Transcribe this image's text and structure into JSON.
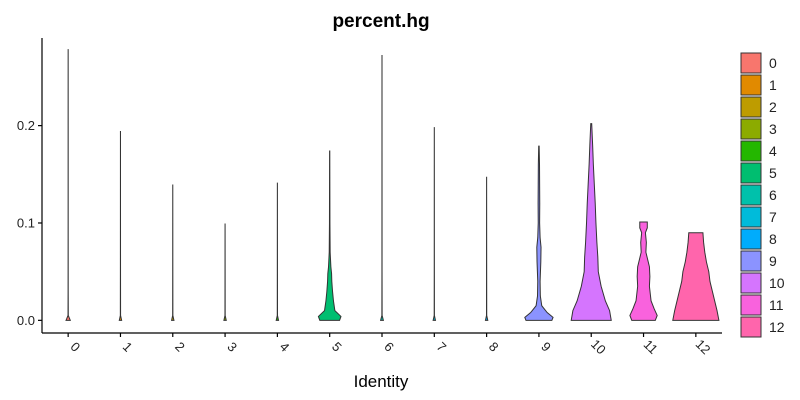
{
  "chart_data": {
    "type": "violin",
    "title": "percent.hg",
    "xlabel": "Identity",
    "ylabel": "",
    "ylim": [
      -0.013,
      0.29
    ],
    "yticks": [
      0.0,
      0.1,
      0.2
    ],
    "ytick_labels": [
      "0.0",
      "0.1",
      "0.2"
    ],
    "grid": false,
    "legend_position": "right",
    "categories": [
      "0",
      "1",
      "2",
      "3",
      "4",
      "5",
      "6",
      "7",
      "8",
      "9",
      "10",
      "11",
      "12"
    ],
    "colors": [
      "#F8766D",
      "#E18A00",
      "#BE9C00",
      "#8CAB00",
      "#24B700",
      "#00BE70",
      "#00C1AB",
      "#00BBDA",
      "#00ACFC",
      "#8B93FF",
      "#D575FE",
      "#F962DD",
      "#FF65AC"
    ],
    "max_values": [
      0.278,
      0.194,
      0.139,
      0.099,
      0.141,
      0.174,
      0.272,
      0.198,
      0.147,
      0.179,
      0.202,
      0.101,
      0.09
    ],
    "density_profiles": [
      [
        [
          0,
          0.09
        ],
        [
          0.005,
          0.006
        ],
        [
          0.03,
          0.003
        ],
        [
          0.1,
          0.002
        ],
        [
          0.2,
          0.002
        ],
        [
          0.278,
          0.001
        ]
      ],
      [
        [
          0,
          0.05
        ],
        [
          0.005,
          0.005
        ],
        [
          0.05,
          0.003
        ],
        [
          0.1,
          0.002
        ],
        [
          0.194,
          0.001
        ]
      ],
      [
        [
          0,
          0.05
        ],
        [
          0.005,
          0.005
        ],
        [
          0.05,
          0.003
        ],
        [
          0.139,
          0.001
        ]
      ],
      [
        [
          0,
          0.05
        ],
        [
          0.005,
          0.005
        ],
        [
          0.05,
          0.003
        ],
        [
          0.099,
          0.001
        ]
      ],
      [
        [
          0,
          0.05
        ],
        [
          0.005,
          0.005
        ],
        [
          0.05,
          0.003
        ],
        [
          0.141,
          0.001
        ]
      ],
      [
        [
          0,
          0.42
        ],
        [
          0.004,
          0.48
        ],
        [
          0.01,
          0.22
        ],
        [
          0.02,
          0.16
        ],
        [
          0.03,
          0.12
        ],
        [
          0.04,
          0.09
        ],
        [
          0.048,
          0.08
        ],
        [
          0.055,
          0.05
        ],
        [
          0.07,
          0.02
        ],
        [
          0.1,
          0.01
        ],
        [
          0.15,
          0.006
        ],
        [
          0.174,
          0.004
        ]
      ],
      [
        [
          0,
          0.06
        ],
        [
          0.005,
          0.006
        ],
        [
          0.05,
          0.003
        ],
        [
          0.15,
          0.002
        ],
        [
          0.272,
          0.001
        ]
      ],
      [
        [
          0,
          0.05
        ],
        [
          0.005,
          0.005
        ],
        [
          0.05,
          0.003
        ],
        [
          0.198,
          0.001
        ]
      ],
      [
        [
          0,
          0.05
        ],
        [
          0.005,
          0.005
        ],
        [
          0.05,
          0.003
        ],
        [
          0.147,
          0.001
        ]
      ],
      [
        [
          0,
          0.55
        ],
        [
          0.003,
          0.6
        ],
        [
          0.008,
          0.35
        ],
        [
          0.015,
          0.12
        ],
        [
          0.025,
          0.06
        ],
        [
          0.04,
          0.05
        ],
        [
          0.06,
          0.08
        ],
        [
          0.075,
          0.09
        ],
        [
          0.085,
          0.05
        ],
        [
          0.1,
          0.03
        ],
        [
          0.12,
          0.035
        ],
        [
          0.14,
          0.03
        ],
        [
          0.16,
          0.025
        ],
        [
          0.179,
          0.01
        ]
      ],
      [
        [
          0,
          0.85
        ],
        [
          0.01,
          0.78
        ],
        [
          0.02,
          0.6
        ],
        [
          0.035,
          0.42
        ],
        [
          0.05,
          0.3
        ],
        [
          0.065,
          0.28
        ],
        [
          0.08,
          0.24
        ],
        [
          0.1,
          0.2
        ],
        [
          0.12,
          0.17
        ],
        [
          0.14,
          0.13
        ],
        [
          0.16,
          0.09
        ],
        [
          0.18,
          0.06
        ],
        [
          0.202,
          0.02
        ]
      ],
      [
        [
          0,
          0.5
        ],
        [
          0.005,
          0.58
        ],
        [
          0.012,
          0.45
        ],
        [
          0.02,
          0.32
        ],
        [
          0.035,
          0.25
        ],
        [
          0.045,
          0.27
        ],
        [
          0.055,
          0.25
        ],
        [
          0.062,
          0.18
        ],
        [
          0.07,
          0.1
        ],
        [
          0.08,
          0.12
        ],
        [
          0.09,
          0.08
        ],
        [
          0.095,
          0.16
        ],
        [
          0.101,
          0.16
        ]
      ],
      [
        [
          0,
          0.98
        ],
        [
          0.01,
          0.9
        ],
        [
          0.02,
          0.8
        ],
        [
          0.03,
          0.7
        ],
        [
          0.04,
          0.6
        ],
        [
          0.05,
          0.55
        ],
        [
          0.06,
          0.45
        ],
        [
          0.07,
          0.38
        ],
        [
          0.08,
          0.33
        ],
        [
          0.09,
          0.3
        ]
      ]
    ]
  }
}
